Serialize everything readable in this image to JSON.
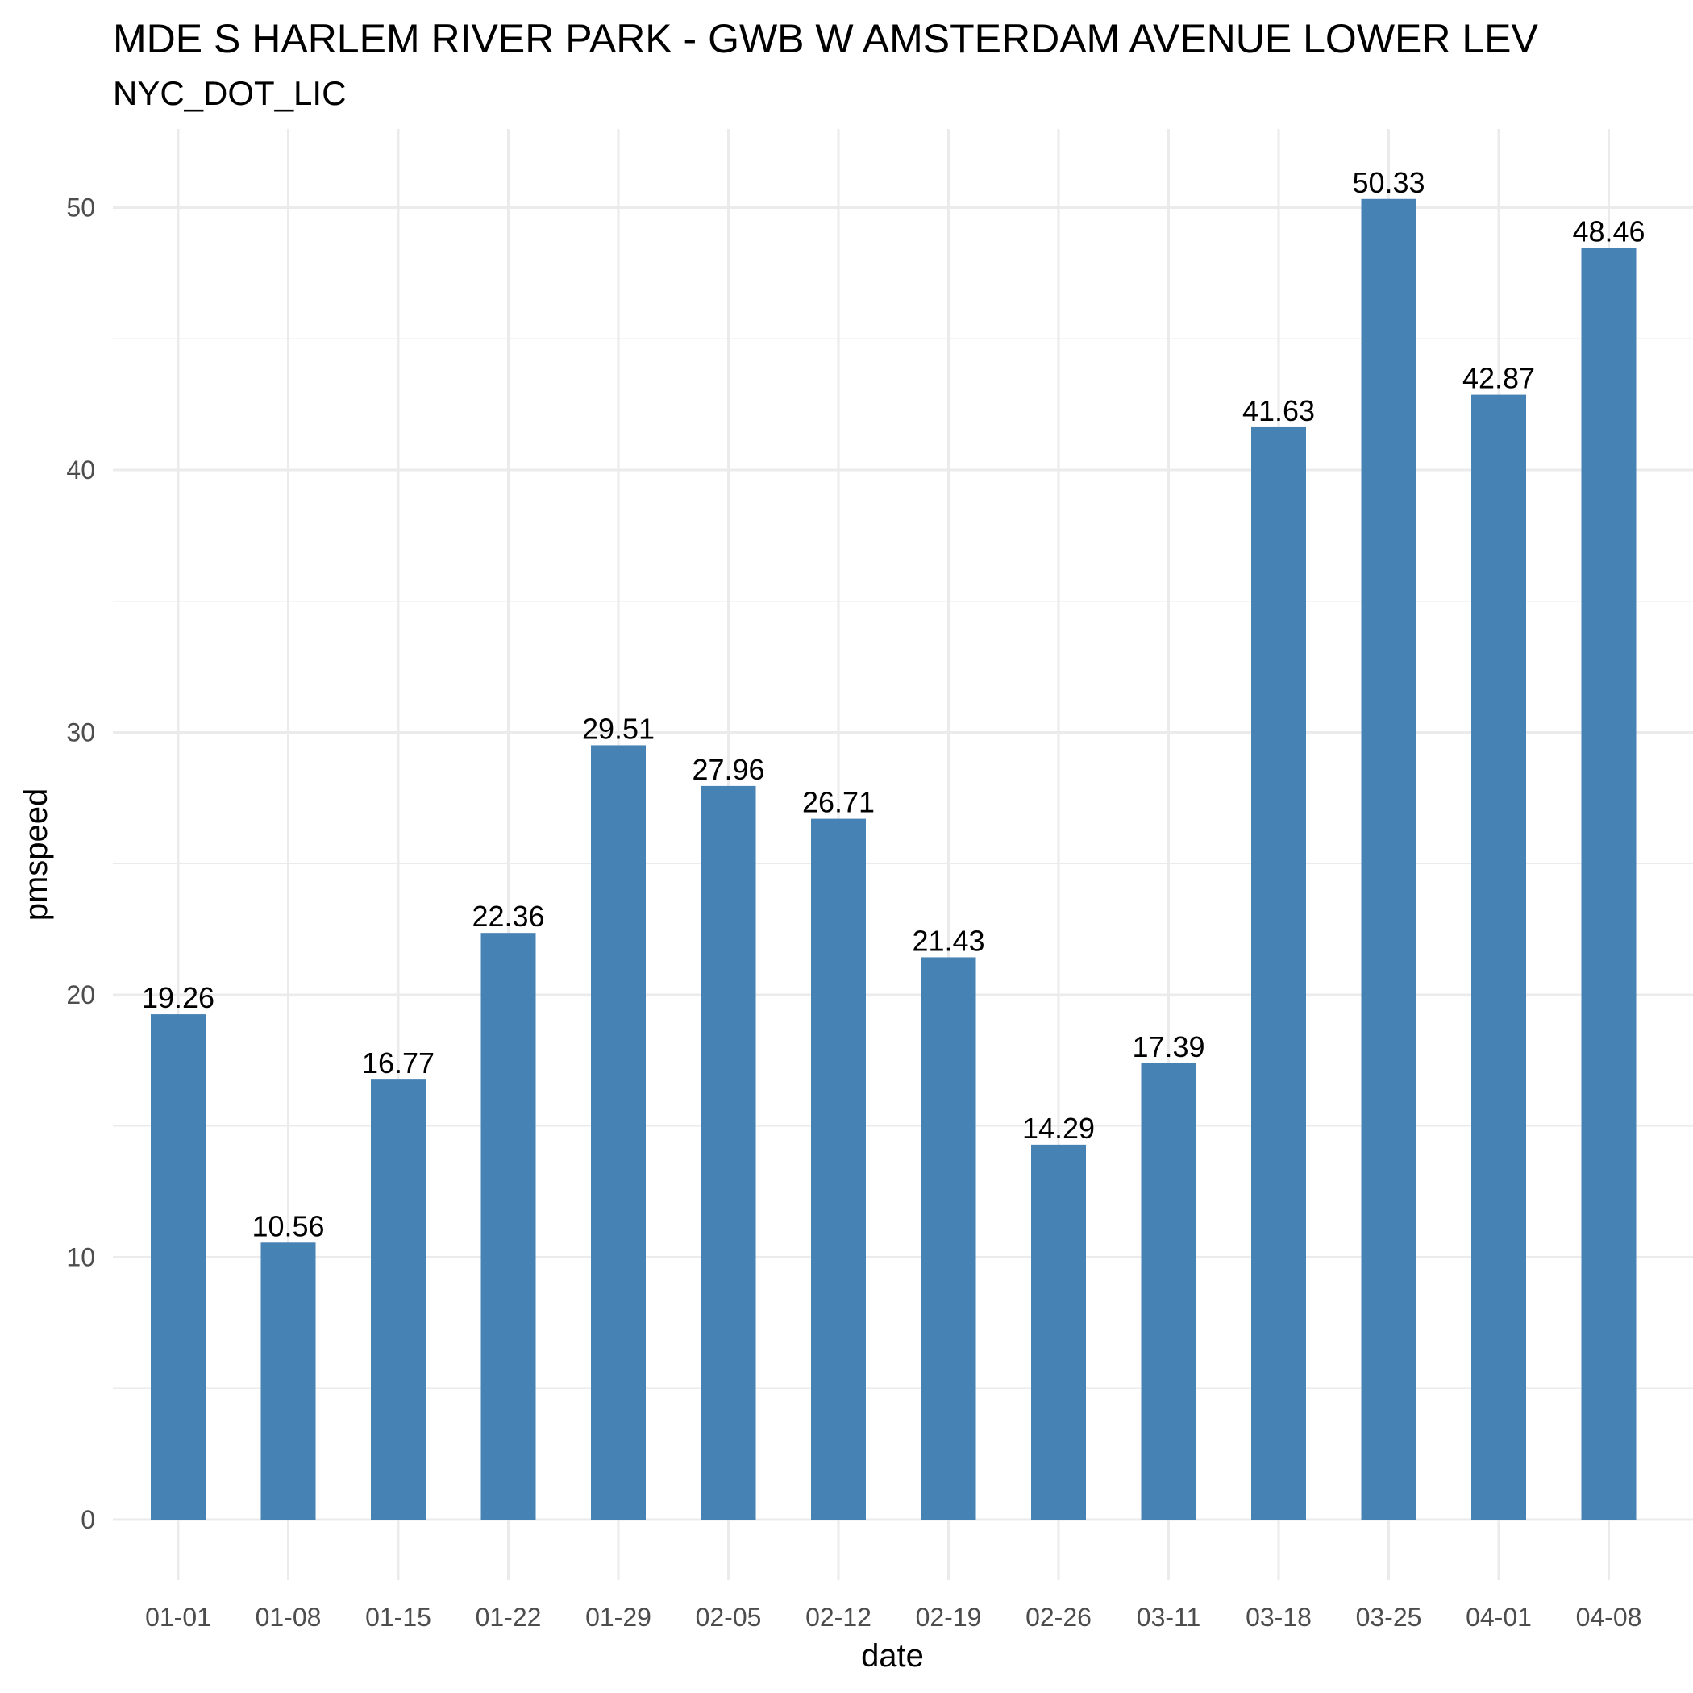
{
  "chart_data": {
    "type": "bar",
    "title": "MDE S HARLEM RIVER PARK - GWB W AMSTERDAM AVENUE LOWER LEV",
    "subtitle": "NYC_DOT_LIC",
    "xlabel": "date",
    "ylabel": "pmspeed",
    "categories": [
      "01-01",
      "01-08",
      "01-15",
      "01-22",
      "01-29",
      "02-05",
      "02-12",
      "02-19",
      "02-26",
      "03-11",
      "03-18",
      "03-25",
      "04-01",
      "04-08"
    ],
    "values": [
      19.26,
      10.56,
      16.77,
      22.36,
      29.51,
      27.96,
      26.71,
      21.43,
      14.29,
      17.39,
      41.63,
      50.33,
      42.87,
      48.46
    ],
    "data_labels": [
      "19.26",
      "10.56",
      "16.77",
      "22.36",
      "29.51",
      "27.96",
      "26.71",
      "21.43",
      "14.29",
      "17.39",
      "41.63",
      "50.33",
      "42.87",
      "48.46"
    ],
    "y_ticks": [
      0,
      10,
      20,
      30,
      40,
      50
    ],
    "y_tick_labels": [
      "0",
      "10",
      "20",
      "30",
      "40",
      "50"
    ],
    "ylim": [
      0,
      53
    ],
    "grid": true,
    "legend": "none",
    "bar_color": "#4682B4",
    "grid_color": "#EBEBEB"
  }
}
